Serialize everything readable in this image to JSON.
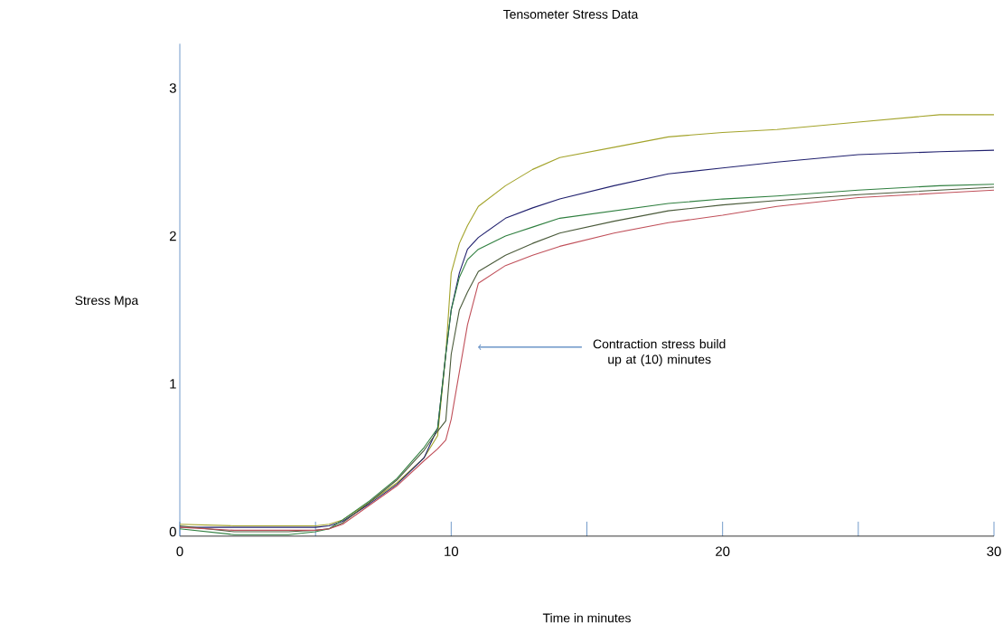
{
  "chart_data": {
    "type": "line",
    "title": "Tensometer Stress Data",
    "xlabel": "Time in minutes",
    "ylabel": "Stress Mpa",
    "x": [
      0,
      2,
      4,
      5,
      5.5,
      6,
      7,
      8,
      9,
      9.5,
      9.8,
      10,
      10.3,
      10.6,
      11,
      12,
      13,
      14,
      16,
      18,
      20,
      22,
      25,
      28,
      30
    ],
    "series": [
      {
        "color": "#a3a32a",
        "values": [
          0.05,
          0.04,
          0.04,
          0.04,
          0.05,
          0.08,
          0.2,
          0.33,
          0.5,
          0.65,
          1.2,
          1.75,
          1.95,
          2.07,
          2.2,
          2.34,
          2.45,
          2.53,
          2.6,
          2.67,
          2.7,
          2.72,
          2.77,
          2.82,
          2.82
        ]
      },
      {
        "color": "#20206e",
        "values": [
          0.03,
          0.03,
          0.03,
          0.03,
          0.04,
          0.07,
          0.19,
          0.32,
          0.5,
          0.7,
          1.2,
          1.5,
          1.75,
          1.91,
          1.99,
          2.12,
          2.19,
          2.25,
          2.34,
          2.42,
          2.46,
          2.5,
          2.55,
          2.57,
          2.58
        ]
      },
      {
        "color": "#2f7f3f",
        "values": [
          0.02,
          -0.02,
          -0.02,
          0.0,
          0.02,
          0.08,
          0.21,
          0.36,
          0.57,
          0.7,
          1.2,
          1.5,
          1.72,
          1.84,
          1.91,
          2.0,
          2.06,
          2.12,
          2.17,
          2.22,
          2.25,
          2.27,
          2.31,
          2.34,
          2.35
        ]
      },
      {
        "color": "#4a5a3a",
        "values": [
          0.04,
          0.0,
          0.0,
          0.01,
          0.02,
          0.06,
          0.2,
          0.35,
          0.55,
          0.68,
          0.75,
          1.2,
          1.5,
          1.62,
          1.76,
          1.87,
          1.95,
          2.02,
          2.1,
          2.17,
          2.21,
          2.24,
          2.28,
          2.31,
          2.33
        ]
      },
      {
        "color": "#c0505a",
        "values": [
          0.03,
          0.01,
          0.01,
          0.01,
          0.02,
          0.05,
          0.18,
          0.31,
          0.48,
          0.56,
          0.62,
          0.76,
          1.08,
          1.4,
          1.68,
          1.8,
          1.87,
          1.93,
          2.02,
          2.09,
          2.14,
          2.2,
          2.26,
          2.29,
          2.31
        ]
      }
    ],
    "xlim": [
      0,
      30
    ],
    "ylim": [
      -0.03,
      3.3
    ],
    "xticks": [
      0,
      {
        "value": 5,
        "label": null
      },
      10,
      {
        "value": 15,
        "label": null
      },
      20,
      {
        "value": 25,
        "label": null
      },
      30
    ],
    "yticks": [
      0,
      1,
      2,
      3
    ],
    "annotations": [
      "Contraction stress build up at (10) minutes"
    ],
    "grid": false,
    "legend": false,
    "marker": "none",
    "line_style": "solid"
  }
}
